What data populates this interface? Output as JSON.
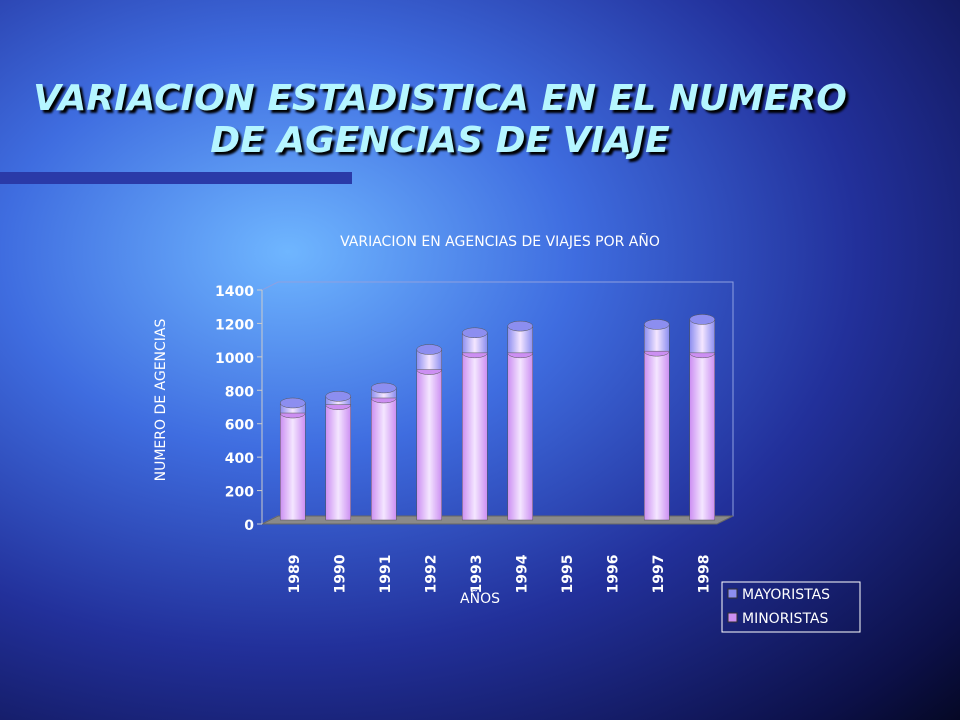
{
  "slide_title": [
    "VARIACION ESTADISTICA EN EL NUMERO",
    "DE AGENCIAS DE VIAJE"
  ],
  "chart_data": {
    "type": "bar",
    "stacked": true,
    "title": "VARIACION EN AGENCIAS DE VIAJES POR AÑO",
    "x_label": "AÑOS",
    "y_label": "NUMERO DE AGENCIAS",
    "categories": [
      "1989",
      "1990",
      "1991",
      "1992",
      "1993",
      "1994",
      "1995",
      "1996",
      "1997",
      "1998"
    ],
    "series": [
      {
        "name": "MINORISTAS",
        "color": "#cc8ff2",
        "values": [
          640,
          690,
          730,
          900,
          1000,
          1000,
          null,
          null,
          1010,
          1000
        ]
      },
      {
        "name": "MAYORISTAS",
        "color": "#8c8ef0",
        "values": [
          60,
          50,
          60,
          120,
          120,
          160,
          null,
          null,
          160,
          200
        ]
      }
    ],
    "ylim": [
      0,
      1400
    ],
    "yticks": [
      0,
      200,
      400,
      600,
      800,
      1000,
      1200,
      1400
    ],
    "legend": "bottom-right"
  }
}
